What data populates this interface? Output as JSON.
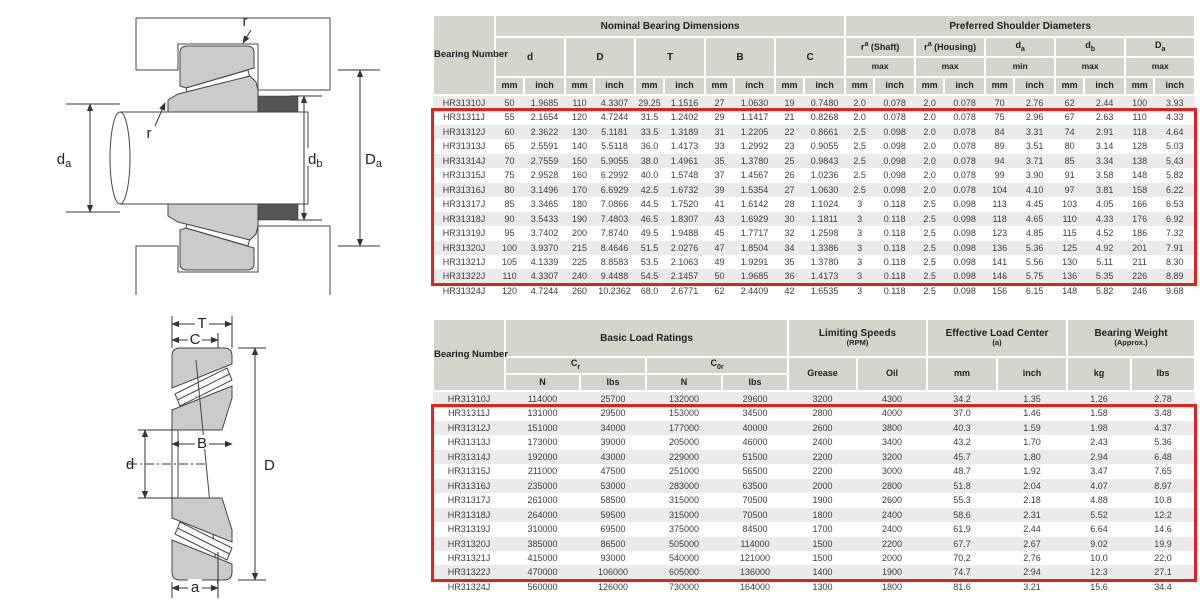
{
  "colors": {
    "red": "#e2231d",
    "header_bg": "#d4d3cc",
    "row_alt": "#ebebeb",
    "text": "#3a3a3a"
  },
  "diagram_mounted": {
    "labels": {
      "r_top": "r",
      "r_inner": "r",
      "da": {
        "base": "d",
        "sub": "a"
      },
      "db": {
        "base": "d",
        "sub": "b"
      },
      "Da": {
        "base": "D",
        "sub": "a"
      }
    }
  },
  "diagram_section": {
    "labels": {
      "T": "T",
      "C": "C",
      "B": "B",
      "D": "D",
      "d": "d",
      "a": "a"
    }
  },
  "dimensions_table": {
    "col_bearing": "Bearing Number",
    "group_nominal": "Nominal Bearing Dimensions",
    "group_shoulder": "Preferred Shoulder Diameters",
    "nominal_cols": [
      "d",
      "D",
      "T",
      "B",
      "C"
    ],
    "shoulder_cols": [
      {
        "base": "r",
        "sup": "a",
        "rest": " (Shaft)",
        "limit": "max"
      },
      {
        "base": "r",
        "sup": "a",
        "rest": " (Housing)",
        "limit": "max"
      },
      {
        "base": "d",
        "sub": "a",
        "limit": "min"
      },
      {
        "base": "d",
        "sub": "b",
        "limit": "max"
      },
      {
        "base": "D",
        "sub": "a",
        "limit": "max"
      }
    ],
    "unit_mm": "mm",
    "unit_inch": "inch",
    "highlighted_range": {
      "from": "HR31311J",
      "to": "HR31322J"
    },
    "rows": [
      [
        "HR31310J",
        "50",
        "1.9685",
        "110",
        "4.3307",
        "29.25",
        "1.1516",
        "27",
        "1.0630",
        "19",
        "0.7480",
        "2.0",
        "0.078",
        "2.0",
        "0.078",
        "70",
        "2.76",
        "62",
        "2.44",
        "100",
        "3.93"
      ],
      [
        "HR31311J",
        "55",
        "2.1654",
        "120",
        "4.7244",
        "31.5",
        "1.2402",
        "29",
        "1.1417",
        "21",
        "0.8268",
        "2.0",
        "0.078",
        "2.0",
        "0.078",
        "75",
        "2.96",
        "67",
        "2.63",
        "110",
        "4.33"
      ],
      [
        "HR31312J",
        "60",
        "2.3622",
        "130",
        "5.1181",
        "33.5",
        "1.3189",
        "31",
        "1.2205",
        "22",
        "0.8661",
        "2.5",
        "0.098",
        "2.0",
        "0.078",
        "84",
        "3.31",
        "74",
        "2.91",
        "118",
        "4.64"
      ],
      [
        "HR31313J",
        "65",
        "2.5591",
        "140",
        "5.5118",
        "36.0",
        "1.4173",
        "33",
        "1.2992",
        "23",
        "0.9055",
        "2.5",
        "0.098",
        "2.0",
        "0.078",
        "89",
        "3.51",
        "80",
        "3.14",
        "128",
        "5.03"
      ],
      [
        "HR31314J",
        "70",
        "2.7559",
        "150",
        "5.9055",
        "38.0",
        "1.4961",
        "35",
        "1.3780",
        "25",
        "0.9843",
        "2.5",
        "0.098",
        "2.0",
        "0.078",
        "94",
        "3.71",
        "85",
        "3.34",
        "138",
        "5.43"
      ],
      [
        "HR31315J",
        "75",
        "2.9528",
        "160",
        "6.2992",
        "40.0",
        "1.5748",
        "37",
        "1.4567",
        "26",
        "1.0236",
        "2.5",
        "0.098",
        "2.0",
        "0.078",
        "99",
        "3.90",
        "91",
        "3.58",
        "148",
        "5.82"
      ],
      [
        "HR31316J",
        "80",
        "3.1496",
        "170",
        "6.6929",
        "42.5",
        "1.6732",
        "39",
        "1.5354",
        "27",
        "1.0630",
        "2.5",
        "0.098",
        "2.0",
        "0.078",
        "104",
        "4.10",
        "97",
        "3.81",
        "158",
        "6.22"
      ],
      [
        "HR31317J",
        "85",
        "3.3465",
        "180",
        "7.0866",
        "44.5",
        "1.7520",
        "41",
        "1.6142",
        "28",
        "1.1024",
        "3",
        "0.118",
        "2.5",
        "0.098",
        "113",
        "4.45",
        "103",
        "4.05",
        "166",
        "6.53"
      ],
      [
        "HR31318J",
        "90",
        "3.5433",
        "190",
        "7.4803",
        "46.5",
        "1.8307",
        "43",
        "1.6929",
        "30",
        "1.1811",
        "3",
        "0.118",
        "2.5",
        "0.098",
        "118",
        "4.65",
        "110",
        "4.33",
        "176",
        "6.92"
      ],
      [
        "HR31319J",
        "95",
        "3.7402",
        "200",
        "7.8740",
        "49.5",
        "1.9488",
        "45",
        "1.7717",
        "32",
        "1.2598",
        "3",
        "0.118",
        "2.5",
        "0.098",
        "123",
        "4.85",
        "115",
        "4.52",
        "186",
        "7.32"
      ],
      [
        "HR31320J",
        "100",
        "3.9370",
        "215",
        "8.4646",
        "51.5",
        "2.0276",
        "47",
        "1.8504",
        "34",
        "1.3386",
        "3",
        "0.118",
        "2.5",
        "0.098",
        "136",
        "5.36",
        "125",
        "4.92",
        "201",
        "7.91"
      ],
      [
        "HR31321J",
        "105",
        "4.1339",
        "225",
        "8.8583",
        "53.5",
        "2.1063",
        "49",
        "1.9291",
        "35",
        "1.3780",
        "3",
        "0.118",
        "2.5",
        "0.098",
        "141",
        "5.56",
        "130",
        "5.11",
        "211",
        "8.30"
      ],
      [
        "HR31322J",
        "110",
        "4.3307",
        "240",
        "9.4488",
        "54.5",
        "2.1457",
        "50",
        "1.9685",
        "36",
        "1.4173",
        "3",
        "0.118",
        "2.5",
        "0.098",
        "146",
        "5.75",
        "136",
        "5.35",
        "226",
        "8.89"
      ],
      [
        "HR31324J",
        "120",
        "4.7244",
        "260",
        "10.2362",
        "68.0",
        "2.6771",
        "62",
        "2.4409",
        "42",
        "1.6535",
        "3",
        "0.118",
        "2.5",
        "0.098",
        "156",
        "6.15",
        "148",
        "5.82",
        "246",
        "9.68"
      ]
    ]
  },
  "ratings_table": {
    "col_bearing": "Bearing Number",
    "group_load": "Basic Load Ratings",
    "group_speed": {
      "title": "Limiting Speeds",
      "sub": "(RPM)"
    },
    "group_center": {
      "title": "Effective Load Center",
      "sub": "(a)"
    },
    "group_weight": {
      "title": "Bearing Weight",
      "sub": "(Approx.)"
    },
    "load_cols": [
      {
        "base": "C",
        "sub": "r"
      },
      {
        "base": "C",
        "sub": "0r"
      }
    ],
    "load_units": [
      "N",
      "lbs",
      "N",
      "lbs"
    ],
    "speed_cols": [
      "Grease",
      "Oil"
    ],
    "center_cols": [
      "mm",
      "inch"
    ],
    "weight_cols": [
      "kg",
      "lbs"
    ],
    "highlighted_range": {
      "from": "HR31311J",
      "to": "HR31322J"
    },
    "rows": [
      [
        "HR31310J",
        "114000",
        "25700",
        "132000",
        "29600",
        "3200",
        "4300",
        "34.2",
        "1.35",
        "1.26",
        "2.78"
      ],
      [
        "HR31311J",
        "131000",
        "29500",
        "153000",
        "34500",
        "2800",
        "4000",
        "37.0",
        "1.46",
        "1.58",
        "3.48"
      ],
      [
        "HR31312J",
        "151000",
        "34000",
        "177000",
        "40000",
        "2600",
        "3800",
        "40.3",
        "1.59",
        "1.98",
        "4.37"
      ],
      [
        "HR31313J",
        "173000",
        "39000",
        "205000",
        "46000",
        "2400",
        "3400",
        "43.2",
        "1.70",
        "2.43",
        "5.36"
      ],
      [
        "HR31314J",
        "192000",
        "43000",
        "229000",
        "51500",
        "2200",
        "3200",
        "45.7",
        "1.80",
        "2.94",
        "6.48"
      ],
      [
        "HR31315J",
        "211000",
        "47500",
        "251000",
        "56500",
        "2200",
        "3000",
        "48.7",
        "1.92",
        "3.47",
        "7.65"
      ],
      [
        "HR31316J",
        "235000",
        "53000",
        "283000",
        "63500",
        "2000",
        "2800",
        "51.8",
        "2.04",
        "4.07",
        "8.97"
      ],
      [
        "HR31317J",
        "261000",
        "58500",
        "315000",
        "70500",
        "1900",
        "2600",
        "55.3",
        "2.18",
        "4.88",
        "10.8"
      ],
      [
        "HR31318J",
        "264000",
        "59500",
        "315000",
        "70500",
        "1800",
        "2400",
        "58.6",
        "2.31",
        "5.52",
        "12.2"
      ],
      [
        "HR31319J",
        "310000",
        "69500",
        "375000",
        "84500",
        "1700",
        "2400",
        "61.9",
        "2.44",
        "6.64",
        "14.6"
      ],
      [
        "HR31320J",
        "385000",
        "86500",
        "505000",
        "114000",
        "1500",
        "2200",
        "67.7",
        "2.67",
        "9.02",
        "19.9"
      ],
      [
        "HR31321J",
        "415000",
        "93000",
        "540000",
        "121000",
        "1500",
        "2000",
        "70.2",
        "2.76",
        "10.0",
        "22.0"
      ],
      [
        "HR31322J",
        "470000",
        "106000",
        "605000",
        "136000",
        "1400",
        "1900",
        "74.7",
        "2.94",
        "12.3",
        "27.1"
      ],
      [
        "HR31324J",
        "560000",
        "126000",
        "730000",
        "164000",
        "1300",
        "1800",
        "81.6",
        "3.21",
        "15.6",
        "34.4"
      ]
    ]
  }
}
